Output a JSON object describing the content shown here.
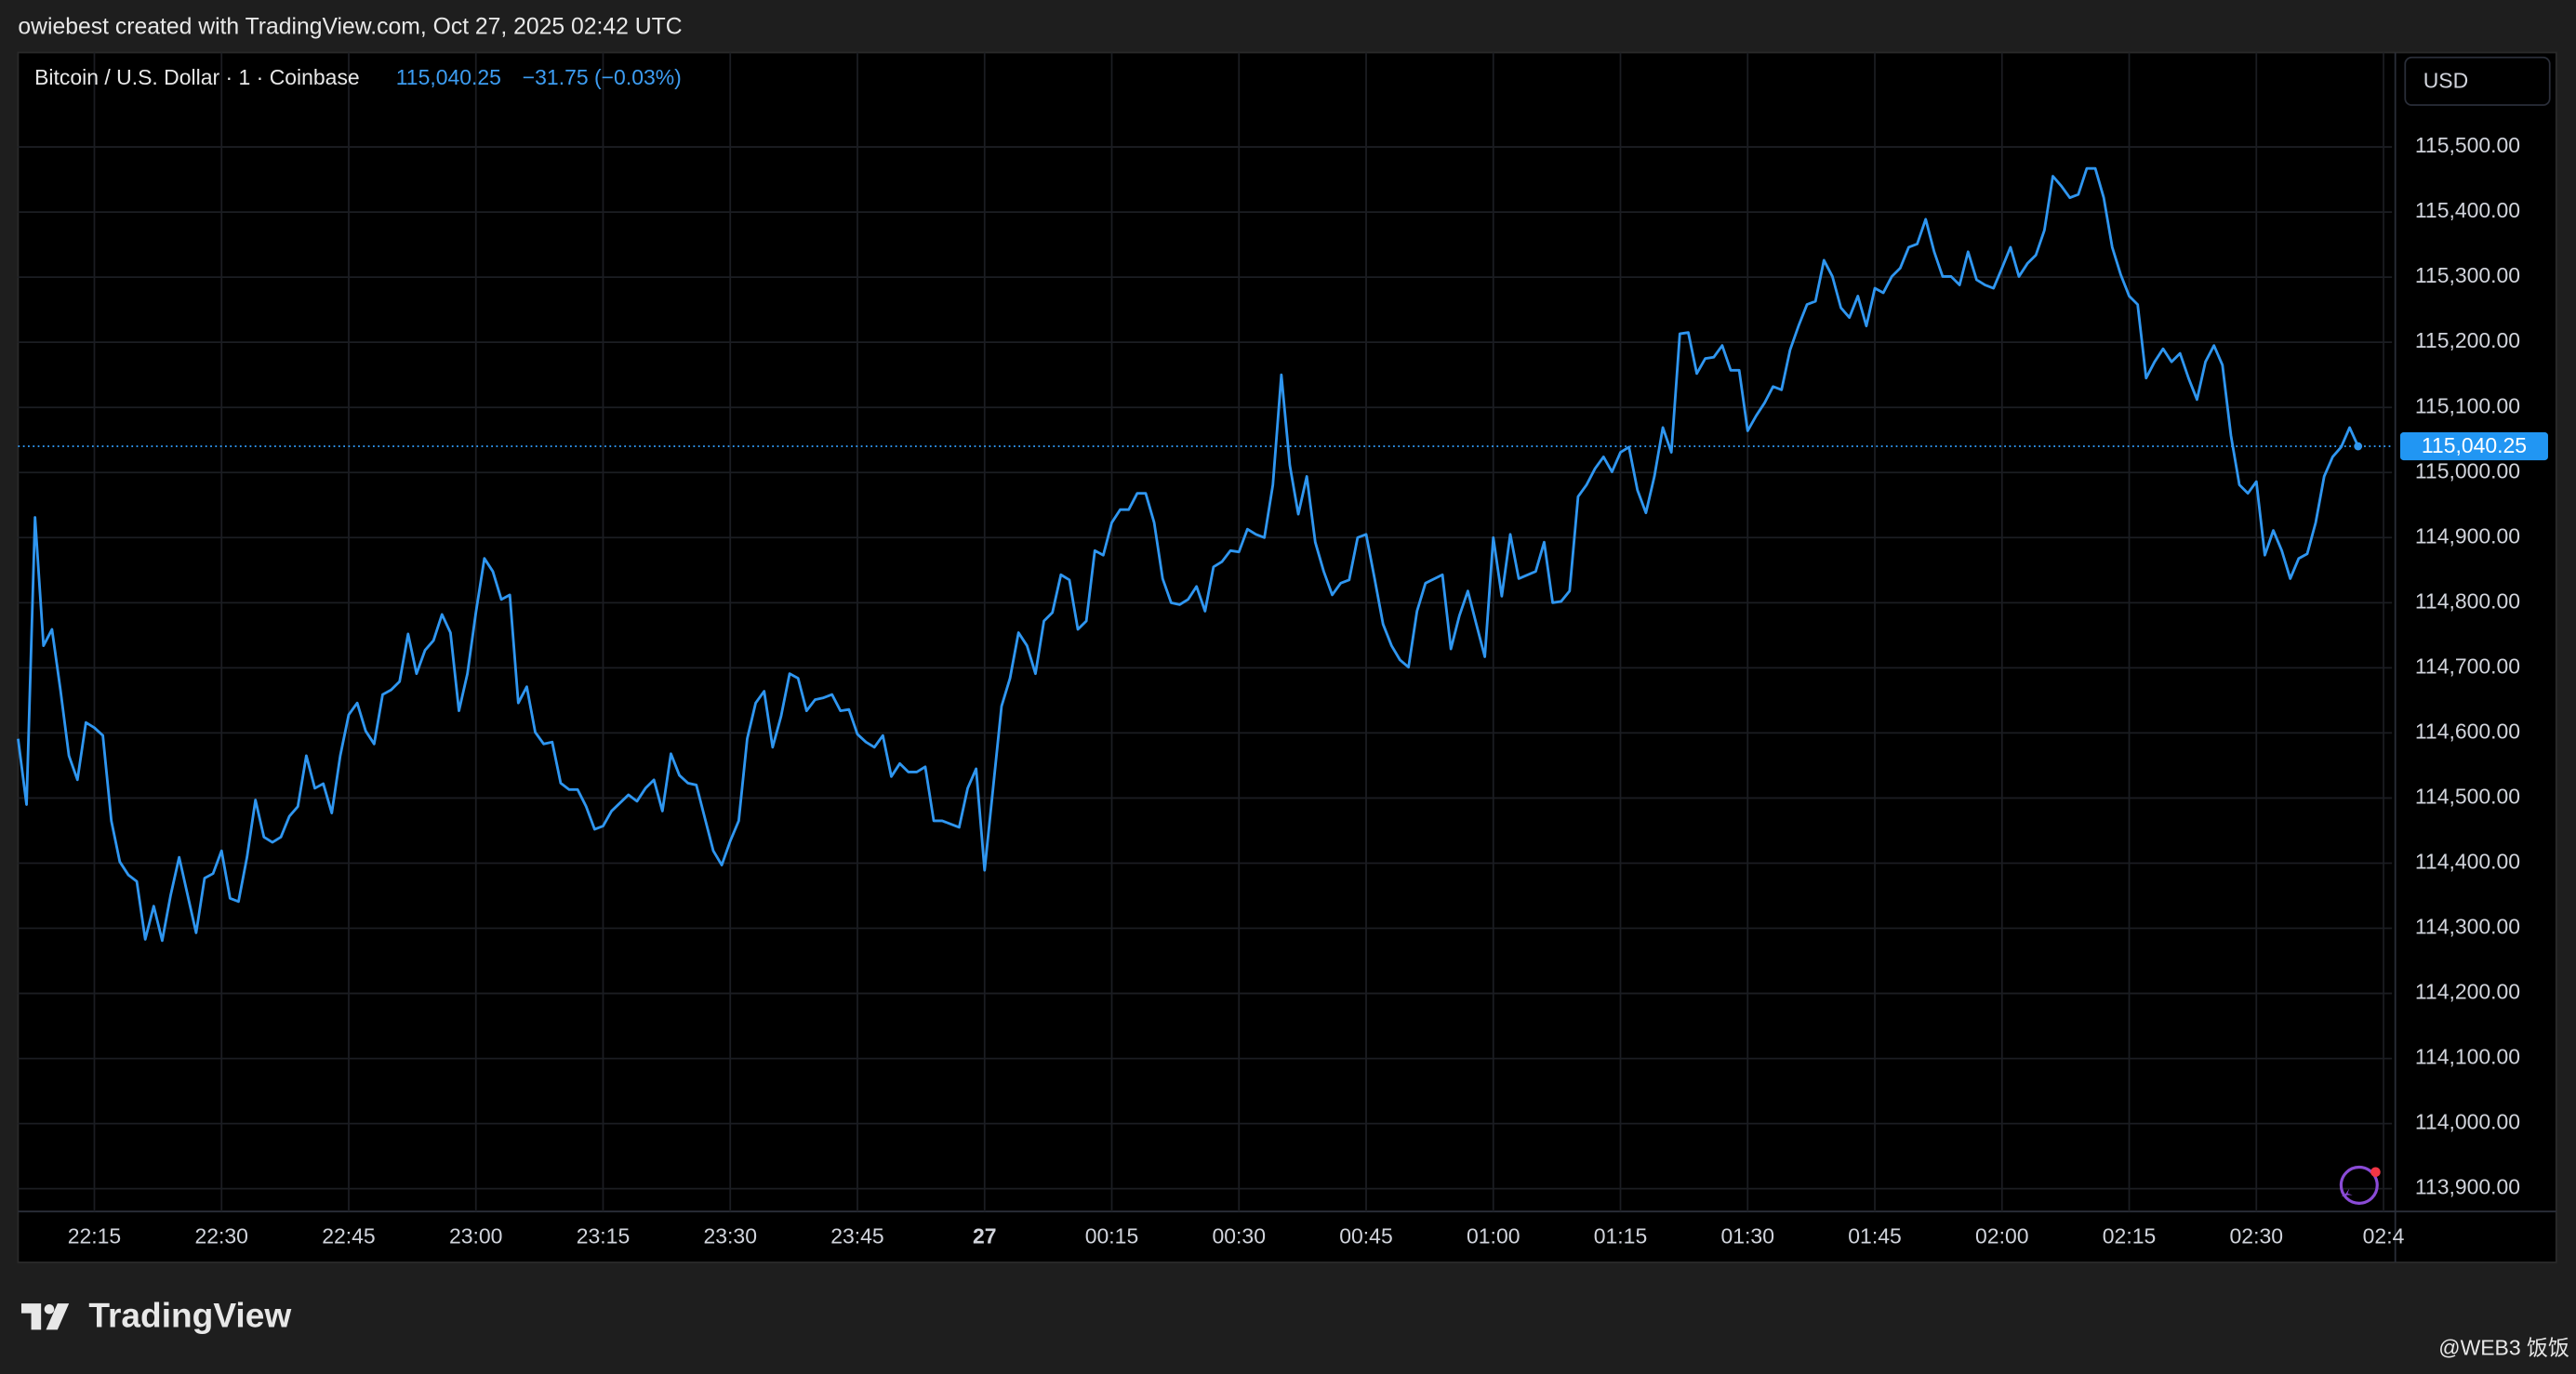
{
  "header": {
    "credit": "owiebest created with TradingView.com, Oct 27, 2025 02:42 UTC",
    "symbol": "Bitcoin / U.S. Dollar · 1 · Coinbase",
    "price": "115,040.25",
    "change": "−31.75 (−0.03%)",
    "currency": "USD"
  },
  "footer": {
    "logo": "TradingView",
    "watermark": "@WEB3 饭饭"
  },
  "chart_data": {
    "type": "line",
    "color": "#2f96f0",
    "grid": true,
    "xlim": [
      "22:06",
      "02:46"
    ],
    "ylim": [
      113865,
      115645
    ],
    "xticks": [
      "22:15",
      "22:30",
      "22:45",
      "23:00",
      "23:15",
      "23:30",
      "23:45",
      {
        "value": "00:00",
        "label": "27"
      },
      "00:15",
      "00:30",
      "00:45",
      "01:00",
      "01:15",
      "01:30",
      "01:45",
      "02:00",
      "02:15",
      "02:30",
      {
        "value": "02:45",
        "label": "02:4"
      }
    ],
    "yticks": [
      {
        "value": 113900,
        "label": "113,900.00"
      },
      {
        "value": 114000,
        "label": "114,000.00"
      },
      {
        "value": 114100,
        "label": "114,100.00"
      },
      {
        "value": 114200,
        "label": "114,200.00"
      },
      {
        "value": 114300,
        "label": "114,300.00"
      },
      {
        "value": 114400,
        "label": "114,400.00"
      },
      {
        "value": 114500,
        "label": "114,500.00"
      },
      {
        "value": 114600,
        "label": "114,600.00"
      },
      {
        "value": 114700,
        "label": "114,700.00"
      },
      {
        "value": 114800,
        "label": "114,800.00"
      },
      {
        "value": 114900,
        "label": "114,900.00"
      },
      {
        "value": 115000,
        "label": "115,000.00"
      },
      {
        "value": 115100,
        "label": "115,100.00"
      },
      {
        "value": 115200,
        "label": "115,200.00"
      },
      {
        "value": 115300,
        "label": "115,300.00"
      },
      {
        "value": 115400,
        "label": "115,400.00"
      },
      {
        "value": 115500,
        "label": "115,500.00"
      }
    ],
    "x": [
      "22:06",
      "22:07",
      "22:08",
      "22:09",
      "22:10",
      "22:11",
      "22:12",
      "22:13",
      "22:14",
      "22:15",
      "22:16",
      "22:17",
      "22:18",
      "22:19",
      "22:20",
      "22:21",
      "22:22",
      "22:23",
      "22:24",
      "22:25",
      "22:26",
      "22:27",
      "22:28",
      "22:29",
      "22:30",
      "22:31",
      "22:32",
      "22:33",
      "22:34",
      "22:35",
      "22:36",
      "22:37",
      "22:38",
      "22:39",
      "22:40",
      "22:41",
      "22:42",
      "22:43",
      "22:44",
      "22:45",
      "22:46",
      "22:47",
      "22:48",
      "22:49",
      "22:50",
      "22:51",
      "22:52",
      "22:53",
      "22:54",
      "22:55",
      "22:56",
      "22:57",
      "22:58",
      "22:59",
      "23:00",
      "23:01",
      "23:02",
      "23:03",
      "23:04",
      "23:05",
      "23:06",
      "23:07",
      "23:08",
      "23:09",
      "23:10",
      "23:11",
      "23:12",
      "23:13",
      "23:14",
      "23:15",
      "23:16",
      "23:18",
      "23:19",
      "23:20",
      "23:21",
      "23:22",
      "23:23",
      "23:24",
      "23:25",
      "23:26",
      "23:28",
      "23:29",
      "23:30",
      "23:31",
      "23:32",
      "23:33",
      "23:34",
      "23:35",
      "23:36",
      "23:37",
      "23:38",
      "23:39",
      "23:40",
      "23:41",
      "23:42",
      "23:43",
      "23:44",
      "23:45",
      "23:46",
      "23:47",
      "23:48",
      "23:49",
      "23:50",
      "23:51",
      "23:52",
      "23:53",
      "23:54",
      "23:55",
      "23:56",
      "23:57",
      "23:58",
      "23:59",
      "00:00",
      "00:01",
      "00:02",
      "00:03",
      "00:04",
      "00:05",
      "00:06",
      "00:07",
      "00:08",
      "00:09",
      "00:10",
      "00:11",
      "00:12",
      "00:13",
      "00:14",
      "00:15",
      "00:16",
      "00:17",
      "00:18",
      "00:19",
      "00:20",
      "00:21",
      "00:22",
      "00:23",
      "00:24",
      "00:25",
      "00:26",
      "00:27",
      "00:28",
      "00:29",
      "00:30",
      "00:31",
      "00:32",
      "00:33",
      "00:34",
      "00:35",
      "00:36",
      "00:37",
      "00:38",
      "00:39",
      "00:40",
      "00:41",
      "00:42",
      "00:43",
      "00:44",
      "00:45",
      "00:46",
      "00:47",
      "00:48",
      "00:49",
      "00:50",
      "00:51",
      "00:52",
      "00:54",
      "00:55",
      "00:56",
      "00:57",
      "00:58",
      "00:59",
      "01:00",
      "01:01",
      "01:02",
      "01:03",
      "01:05",
      "01:06",
      "01:07",
      "01:08",
      "01:09",
      "01:10",
      "01:11",
      "01:12",
      "01:13",
      "01:14",
      "01:15",
      "01:16",
      "01:17",
      "01:18",
      "01:19",
      "01:20",
      "01:21",
      "01:22",
      "01:23",
      "01:24",
      "01:25",
      "01:26",
      "01:27",
      "01:28",
      "01:29",
      "01:30",
      "01:31",
      "01:32",
      "01:33",
      "01:34",
      "01:35",
      "01:36",
      "01:37",
      "01:38",
      "01:39",
      "01:40",
      "01:41",
      "01:42",
      "01:43",
      "01:44",
      "01:45",
      "01:46",
      "01:47",
      "01:48",
      "01:49",
      "01:50",
      "01:51",
      "01:52",
      "01:53",
      "01:54",
      "01:55",
      "01:56",
      "01:57",
      "01:58",
      "01:59",
      "02:00",
      "02:01",
      "02:02",
      "02:03",
      "02:04",
      "02:05",
      "02:06",
      "02:07",
      "02:08",
      "02:09",
      "02:10",
      "02:11",
      "02:12",
      "02:13",
      "02:14",
      "02:15",
      "02:16",
      "02:17",
      "02:18",
      "02:19",
      "02:20",
      "02:21",
      "02:22",
      "02:23",
      "02:24",
      "02:25",
      "02:26",
      "02:27",
      "02:28",
      "02:29",
      "02:30",
      "02:31",
      "02:32",
      "02:33",
      "02:34",
      "02:35",
      "02:36",
      "02:37",
      "02:38",
      "02:39",
      "02:40",
      "02:41",
      "02:42"
    ],
    "values": [
      114591,
      114490,
      114931,
      114734,
      114759,
      114666,
      114565,
      114528,
      114616,
      114608,
      114596,
      114465,
      114402,
      114382,
      114372,
      114283,
      114334,
      114281,
      114351,
      114409,
      114351,
      114293,
      114377,
      114384,
      114419,
      114346,
      114341,
      114409,
      114497,
      114440,
      114432,
      114440,
      114472,
      114487,
      114565,
      114515,
      114522,
      114477,
      114565,
      114628,
      114646,
      114603,
      114583,
      114659,
      114666,
      114679,
      114752,
      114691,
      114727,
      114742,
      114782,
      114754,
      114634,
      114691,
      114785,
      114868,
      114848,
      114805,
      114812,
      114646,
      114671,
      114601,
      114583,
      114586,
      114523,
      114513,
      114513,
      114487,
      114452,
      114457,
      114480,
      114505,
      114495,
      114515,
      114528,
      114480,
      114568,
      114535,
      114523,
      114520,
      114419,
      114397,
      114434,
      114465,
      114591,
      114646,
      114664,
      114578,
      114626,
      114691,
      114684,
      114634,
      114651,
      114654,
      114659,
      114634,
      114636,
      114598,
      114586,
      114578,
      114596,
      114533,
      114553,
      114540,
      114540,
      114548,
      114465,
      114465,
      114460,
      114455,
      114515,
      114545,
      114389,
      114515,
      114641,
      114684,
      114754,
      114734,
      114691,
      114772,
      114785,
      114843,
      114835,
      114759,
      114772,
      114880,
      114873,
      114923,
      114943,
      114943,
      114968,
      114968,
      114923,
      114837,
      114800,
      114797,
      114805,
      114825,
      114787,
      114855,
      114863,
      114880,
      114878,
      114913,
      114905,
      114900,
      114981,
      115150,
      115011,
      114936,
      114994,
      114893,
      114848,
      114812,
      114830,
      114835,
      114900,
      114905,
      114837,
      114767,
      114734,
      114712,
      114701,
      114787,
      114830,
      114843,
      114729,
      114780,
      114818,
      114767,
      114717,
      114900,
      114810,
      114905,
      114837,
      114848,
      114893,
      114800,
      114802,
      114818,
      114963,
      114981,
      115006,
      115024,
      115001,
      115031,
      115039,
      114973,
      114938,
      114994,
      115069,
      115031,
      115213,
      115215,
      115152,
      115175,
      115177,
      115195,
      115157,
      115157,
      115064,
      115087,
      115107,
      115132,
      115127,
      115188,
      115225,
      115258,
      115263,
      115326,
      115301,
      115253,
      115238,
      115271,
      115225,
      115283,
      115276,
      115301,
      115314,
      115346,
      115351,
      115389,
      115339,
      115301,
      115301,
      115288,
      115339,
      115296,
      115288,
      115283,
      115314,
      115346,
      115301,
      115321,
      115334,
      115372,
      115455,
      115440,
      115422,
      115427,
      115467,
      115467,
      115422,
      115346,
      115304,
      115271,
      115258,
      115145,
      115170,
      115190,
      115170,
      115183,
      115145,
      115112,
      115170,
      115195,
      115165,
      115057,
      114981,
      114968,
      114986,
      114873,
      114911,
      114880,
      114837,
      114868,
      114875,
      114923,
      114994,
      115024,
      115039,
      115069,
      115040.25
    ]
  }
}
